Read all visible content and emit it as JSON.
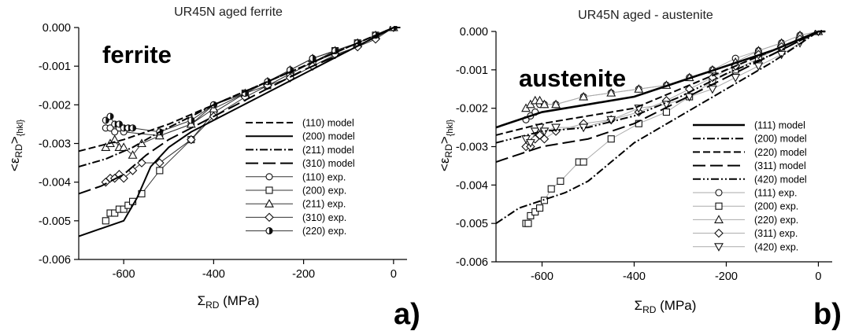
{
  "chart_data": [
    {
      "type": "line",
      "panel_label": "a)",
      "title": "UR45N aged ferrite",
      "annotation": "ferrite",
      "xlabel": "Σ_RD (MPa)",
      "ylabel": "<ε_RD>_{hkl}",
      "xlim": [
        -700,
        30
      ],
      "ylim": [
        -0.006,
        0.0
      ],
      "xticks": [
        -600,
        -400,
        -200,
        0
      ],
      "xtick_labels": [
        "-600",
        "-400",
        "-200",
        "0"
      ],
      "yticks": [
        0.0,
        -0.001,
        -0.002,
        -0.003,
        -0.004,
        -0.005,
        -0.006
      ],
      "ytick_labels": [
        "0.000",
        "-0.001",
        "-0.002",
        "-0.003",
        "-0.004",
        "-0.005",
        "-0.006"
      ],
      "legend_position": "right",
      "series": [
        {
          "name": "(110) model",
          "kind": "model",
          "dash": "dashed",
          "x": [
            -700,
            -600,
            -500,
            -400,
            -300,
            -200,
            -100,
            0,
            15
          ],
          "y": [
            -0.0032,
            -0.0029,
            -0.0025,
            -0.002,
            -0.0015,
            -0.001,
            -0.0005,
            0.0,
            0.0
          ]
        },
        {
          "name": "(200) model",
          "kind": "model",
          "dash": "solid",
          "x": [
            -700,
            -650,
            -600,
            -570,
            -540,
            -500,
            -450,
            -400,
            -300,
            -200,
            -100,
            0,
            15
          ],
          "y": [
            -0.0054,
            -0.0052,
            -0.005,
            -0.0044,
            -0.0036,
            -0.0031,
            -0.0027,
            -0.0024,
            -0.0018,
            -0.0012,
            -0.0006,
            0.0,
            0.0
          ]
        },
        {
          "name": "(211) model",
          "kind": "model",
          "dash": "dashdot",
          "x": [
            -700,
            -640,
            -580,
            -520,
            -450,
            -400,
            -300,
            -200,
            -100,
            0,
            15
          ],
          "y": [
            -0.0036,
            -0.0034,
            -0.0031,
            -0.0027,
            -0.0023,
            -0.002,
            -0.0015,
            -0.001,
            -0.0005,
            0.0,
            0.0
          ]
        },
        {
          "name": "(310) model",
          "kind": "model",
          "dash": "longdash",
          "x": [
            -700,
            -650,
            -600,
            -550,
            -500,
            -450,
            -400,
            -300,
            -200,
            -100,
            0,
            15
          ],
          "y": [
            -0.0043,
            -0.0041,
            -0.0038,
            -0.0033,
            -0.0029,
            -0.0026,
            -0.0023,
            -0.0017,
            -0.0011,
            -0.0006,
            0.0,
            0.0
          ]
        },
        {
          "name": "(110) exp.",
          "kind": "exp",
          "marker": "circle",
          "x": [
            -640,
            -630,
            -620,
            -610,
            -600,
            -520,
            -450,
            -400,
            -330,
            -280,
            -230,
            -180,
            -130,
            -80,
            -40,
            0
          ],
          "y": [
            -0.0026,
            -0.0026,
            -0.0027,
            -0.0026,
            -0.0027,
            -0.0028,
            -0.0025,
            -0.002,
            -0.0017,
            -0.0014,
            -0.0011,
            -0.0008,
            -0.0006,
            -0.0004,
            -0.0002,
            0.0
          ]
        },
        {
          "name": "(200) exp.",
          "kind": "exp",
          "marker": "square",
          "x": [
            -640,
            -630,
            -620,
            -610,
            -600,
            -590,
            -580,
            -560,
            -520,
            -450,
            -400,
            -330,
            -280,
            -230,
            -180,
            -130,
            -80,
            -40,
            0
          ],
          "y": [
            -0.005,
            -0.0048,
            -0.0048,
            -0.0047,
            -0.0047,
            -0.0046,
            -0.0045,
            -0.0043,
            -0.0037,
            -0.0029,
            -0.0022,
            -0.0017,
            -0.0015,
            -0.0012,
            -0.0009,
            -0.0006,
            -0.0004,
            -0.0002,
            0.0
          ]
        },
        {
          "name": "(211) exp.",
          "kind": "exp",
          "marker": "triangle",
          "x": [
            -640,
            -630,
            -620,
            -610,
            -600,
            -580,
            -560,
            -520,
            -450,
            -400,
            -330,
            -280,
            -230,
            -180,
            -130,
            -80,
            -40,
            0
          ],
          "y": [
            -0.0031,
            -0.003,
            -0.0029,
            -0.0031,
            -0.0031,
            -0.0033,
            -0.003,
            -0.0028,
            -0.0025,
            -0.0021,
            -0.0017,
            -0.0014,
            -0.0011,
            -0.0008,
            -0.0006,
            -0.0004,
            -0.0002,
            0.0
          ]
        },
        {
          "name": "(310) exp.",
          "kind": "exp",
          "marker": "diamond",
          "x": [
            -640,
            -630,
            -620,
            -610,
            -600,
            -580,
            -560,
            -520,
            -450,
            -400,
            -330,
            -280,
            -230,
            -180,
            -130,
            -80,
            -40,
            0
          ],
          "y": [
            -0.004,
            -0.0039,
            -0.0039,
            -0.0038,
            -0.0039,
            -0.0037,
            -0.0035,
            -0.0035,
            -0.0029,
            -0.0023,
            -0.0018,
            -0.0015,
            -0.0013,
            -0.001,
            -0.0007,
            -0.0005,
            -0.0003,
            0.0
          ]
        },
        {
          "name": "(220) exp.",
          "kind": "exp",
          "marker": "halfcircle",
          "x": [
            -640,
            -630,
            -620,
            -610,
            -600,
            -590,
            -580,
            -520,
            -450,
            -400,
            -330,
            -280,
            -230,
            -180,
            -130,
            -80,
            -40,
            0
          ],
          "y": [
            -0.0024,
            -0.0023,
            -0.0025,
            -0.0025,
            -0.0026,
            -0.0026,
            -0.0026,
            -0.0027,
            -0.0024,
            -0.002,
            -0.0017,
            -0.0014,
            -0.0011,
            -0.0008,
            -0.0006,
            -0.0004,
            -0.0002,
            0.0
          ]
        }
      ]
    },
    {
      "type": "line",
      "panel_label": "b)",
      "title": "UR45N aged - austenite",
      "annotation": "austenite",
      "xlabel": "Σ_RD (MPa)",
      "ylabel": "<ε_RD>_{hkl}",
      "xlim": [
        -700,
        30
      ],
      "ylim": [
        -0.006,
        0.0
      ],
      "xticks": [
        -600,
        -400,
        -200,
        0
      ],
      "xtick_labels": [
        "-600",
        "-400",
        "-200",
        "0"
      ],
      "yticks": [
        0.0,
        -0.001,
        -0.002,
        -0.003,
        -0.004,
        -0.005,
        -0.006
      ],
      "ytick_labels": [
        "0.000",
        "-0.001",
        "-0.002",
        "-0.003",
        "-0.004",
        "-0.005",
        "-0.006"
      ],
      "legend_position": "right",
      "series": [
        {
          "name": "(111) model",
          "kind": "model",
          "dash": "solid",
          "style": "thick",
          "x": [
            -700,
            -600,
            -500,
            -400,
            -300,
            -200,
            -100,
            0,
            15
          ],
          "y": [
            -0.0025,
            -0.0021,
            -0.0019,
            -0.0017,
            -0.0013,
            -0.0009,
            -0.0005,
            0.0,
            0.0
          ]
        },
        {
          "name": "(200) model",
          "kind": "model",
          "dash": "dashdot",
          "x": [
            -700,
            -650,
            -600,
            -550,
            -500,
            -450,
            -400,
            -300,
            -200,
            -100,
            0,
            15
          ],
          "y": [
            -0.005,
            -0.0046,
            -0.0044,
            -0.0042,
            -0.0039,
            -0.0034,
            -0.0029,
            -0.0022,
            -0.0015,
            -0.0008,
            0.0,
            0.0
          ]
        },
        {
          "name": "(220) model",
          "kind": "model",
          "dash": "dashed",
          "x": [
            -700,
            -600,
            -500,
            -400,
            -300,
            -200,
            -100,
            0,
            15
          ],
          "y": [
            -0.0027,
            -0.0024,
            -0.0022,
            -0.002,
            -0.0015,
            -0.001,
            -0.0005,
            0.0,
            0.0
          ]
        },
        {
          "name": "(311) model",
          "kind": "model",
          "dash": "longdash",
          "x": [
            -700,
            -650,
            -600,
            -500,
            -400,
            -300,
            -200,
            -100,
            0,
            15
          ],
          "y": [
            -0.0034,
            -0.0032,
            -0.003,
            -0.0028,
            -0.0024,
            -0.0018,
            -0.0012,
            -0.0006,
            0.0,
            0.0
          ]
        },
        {
          "name": "(420) model",
          "kind": "model",
          "dash": "dashdotdot",
          "x": [
            -700,
            -600,
            -500,
            -400,
            -300,
            -200,
            -100,
            0,
            15
          ],
          "y": [
            -0.0029,
            -0.0026,
            -0.0025,
            -0.0022,
            -0.0017,
            -0.0011,
            -0.0006,
            0.0,
            0.0
          ]
        },
        {
          "name": "(111) exp.",
          "kind": "exp",
          "marker": "circle",
          "x": [
            -635,
            -625,
            -615,
            -605,
            -595,
            -570,
            -510,
            -450,
            -390,
            -330,
            -280,
            -230,
            -180,
            -130,
            -80,
            -40,
            0
          ],
          "y": [
            -0.0023,
            -0.0022,
            -0.0021,
            -0.0019,
            -0.0019,
            -0.0019,
            -0.0017,
            -0.0016,
            -0.0015,
            -0.0014,
            -0.0012,
            -0.001,
            -0.0007,
            -0.0005,
            -0.0003,
            -0.0001,
            0.0
          ]
        },
        {
          "name": "(200) exp.",
          "kind": "exp",
          "marker": "square",
          "x": [
            -635,
            -630,
            -625,
            -615,
            -605,
            -595,
            -580,
            -560,
            -520,
            -510,
            -450,
            -390,
            -330,
            -280,
            -230,
            -180,
            -130,
            -80,
            -40,
            0
          ],
          "y": [
            -0.005,
            -0.005,
            -0.0048,
            -0.0047,
            -0.0046,
            -0.0044,
            -0.0041,
            -0.0039,
            -0.0034,
            -0.0034,
            -0.0028,
            -0.0024,
            -0.0021,
            -0.0017,
            -0.0013,
            -0.001,
            -0.0007,
            -0.0004,
            -0.0002,
            0.0
          ]
        },
        {
          "name": "(220) exp.",
          "kind": "exp",
          "marker": "triangle",
          "x": [
            -635,
            -625,
            -615,
            -605,
            -595,
            -570,
            -510,
            -450,
            -390,
            -330,
            -280,
            -230,
            -180,
            -130,
            -80,
            -40,
            0
          ],
          "y": [
            -0.002,
            -0.0019,
            -0.0018,
            -0.0018,
            -0.0019,
            -0.0019,
            -0.0017,
            -0.0016,
            -0.0015,
            -0.0014,
            -0.0012,
            -0.001,
            -0.0008,
            -0.0005,
            -0.0003,
            -0.0001,
            0.0
          ]
        },
        {
          "name": "(311) exp.",
          "kind": "exp",
          "marker": "diamond",
          "x": [
            -635,
            -625,
            -615,
            -605,
            -595,
            -570,
            -510,
            -450,
            -390,
            -330,
            -280,
            -230,
            -180,
            -130,
            -80,
            -40,
            0
          ],
          "y": [
            -0.003,
            -0.003,
            -0.0028,
            -0.0027,
            -0.0028,
            -0.0026,
            -0.0024,
            -0.0023,
            -0.0021,
            -0.0018,
            -0.0015,
            -0.0012,
            -0.0009,
            -0.0006,
            -0.0004,
            -0.0002,
            0.0
          ]
        },
        {
          "name": "(420) exp.",
          "kind": "exp",
          "marker": "invtriangle",
          "x": [
            -635,
            -625,
            -615,
            -605,
            -595,
            -570,
            -510,
            -450,
            -390,
            -330,
            -280,
            -230,
            -180,
            -130,
            -80,
            -40,
            0
          ],
          "y": [
            -0.0028,
            -0.0029,
            -0.0026,
            -0.0025,
            -0.0026,
            -0.0025,
            -0.0025,
            -0.0023,
            -0.002,
            -0.0019,
            -0.0017,
            -0.0015,
            -0.0012,
            -0.0009,
            -0.0006,
            -0.0003,
            0.0
          ]
        }
      ]
    }
  ]
}
